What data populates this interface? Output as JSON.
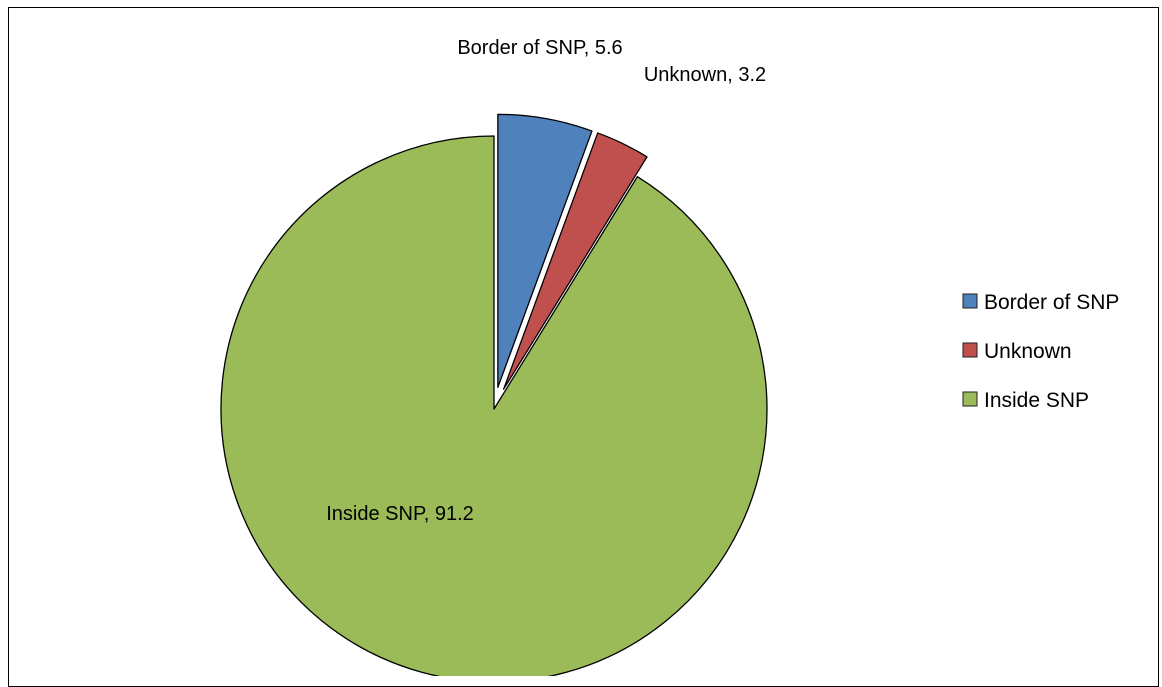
{
  "chart_data": {
    "type": "pie",
    "title": "",
    "slices": [
      {
        "label": "Border of SNP",
        "value": 5.6,
        "color": "#4F81BD",
        "exploded": true,
        "data_label": "Border of SNP, 5.6"
      },
      {
        "label": "Unknown",
        "value": 3.2,
        "color": "#C0504D",
        "exploded": true,
        "data_label": "Unknown, 3.2"
      },
      {
        "label": "Inside SNP",
        "value": 91.2,
        "color": "#9BBB59",
        "exploded": false,
        "data_label": "Inside SNP, 91.2"
      }
    ],
    "legend": {
      "position": "right",
      "entries": [
        "Border of SNP",
        "Unknown",
        "Inside SNP"
      ]
    }
  }
}
